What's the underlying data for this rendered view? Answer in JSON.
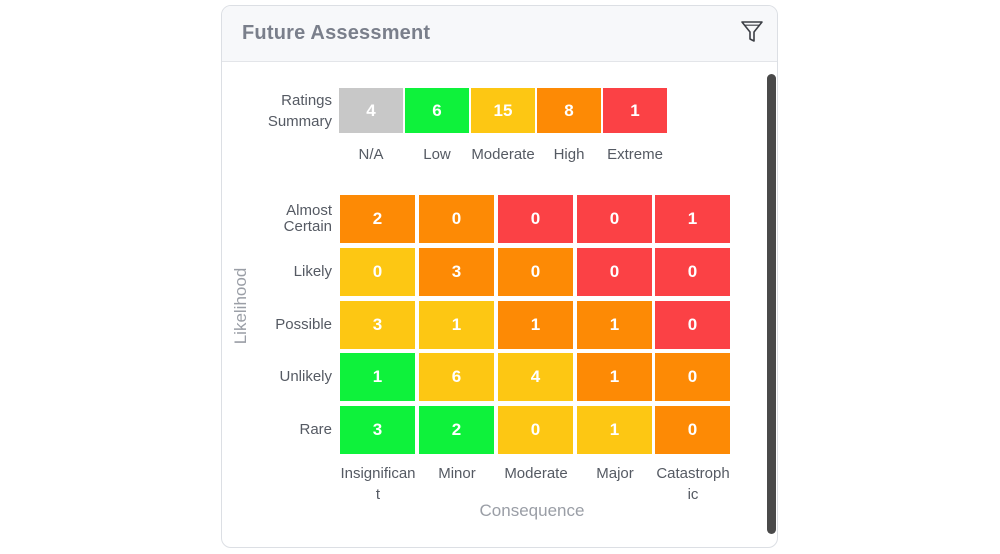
{
  "panel": {
    "title": "Future Assessment",
    "filter_icon": "filter-icon"
  },
  "ratings_summary": {
    "label": "Ratings Summary",
    "items": [
      {
        "name": "N/A",
        "count": "4",
        "color": "#c8c8c8"
      },
      {
        "name": "Low",
        "count": "6",
        "color": "#0ef23b"
      },
      {
        "name": "Moderate",
        "count": "15",
        "color": "#fdc713"
      },
      {
        "name": "High",
        "count": "8",
        "color": "#fd8a05"
      },
      {
        "name": "Extreme",
        "count": "1",
        "color": "#fb4145"
      }
    ]
  },
  "matrix": {
    "y_axis_label": "Likelihood",
    "x_axis_label": "Consequence",
    "rows": [
      "Almost Certain",
      "Likely",
      "Possible",
      "Unlikely",
      "Rare"
    ],
    "columns": [
      "Insignificant",
      "Minor",
      "Moderate",
      "Major",
      "Catastrophic"
    ],
    "values": [
      [
        "2",
        "0",
        "0",
        "0",
        "1"
      ],
      [
        "0",
        "3",
        "0",
        "0",
        "0"
      ],
      [
        "3",
        "1",
        "1",
        "1",
        "0"
      ],
      [
        "1",
        "6",
        "4",
        "1",
        "0"
      ],
      [
        "3",
        "2",
        "0",
        "1",
        "0"
      ]
    ],
    "ratings": [
      [
        "high",
        "high",
        "extreme",
        "extreme",
        "extreme"
      ],
      [
        "moderate",
        "high",
        "high",
        "extreme",
        "extreme"
      ],
      [
        "moderate",
        "moderate",
        "high",
        "high",
        "extreme"
      ],
      [
        "low",
        "moderate",
        "moderate",
        "high",
        "high"
      ],
      [
        "low",
        "low",
        "moderate",
        "moderate",
        "high"
      ]
    ],
    "colors": {
      "low": "#0ef23b",
      "moderate": "#fdc713",
      "high": "#fd8a05",
      "extreme": "#fb4145"
    }
  }
}
